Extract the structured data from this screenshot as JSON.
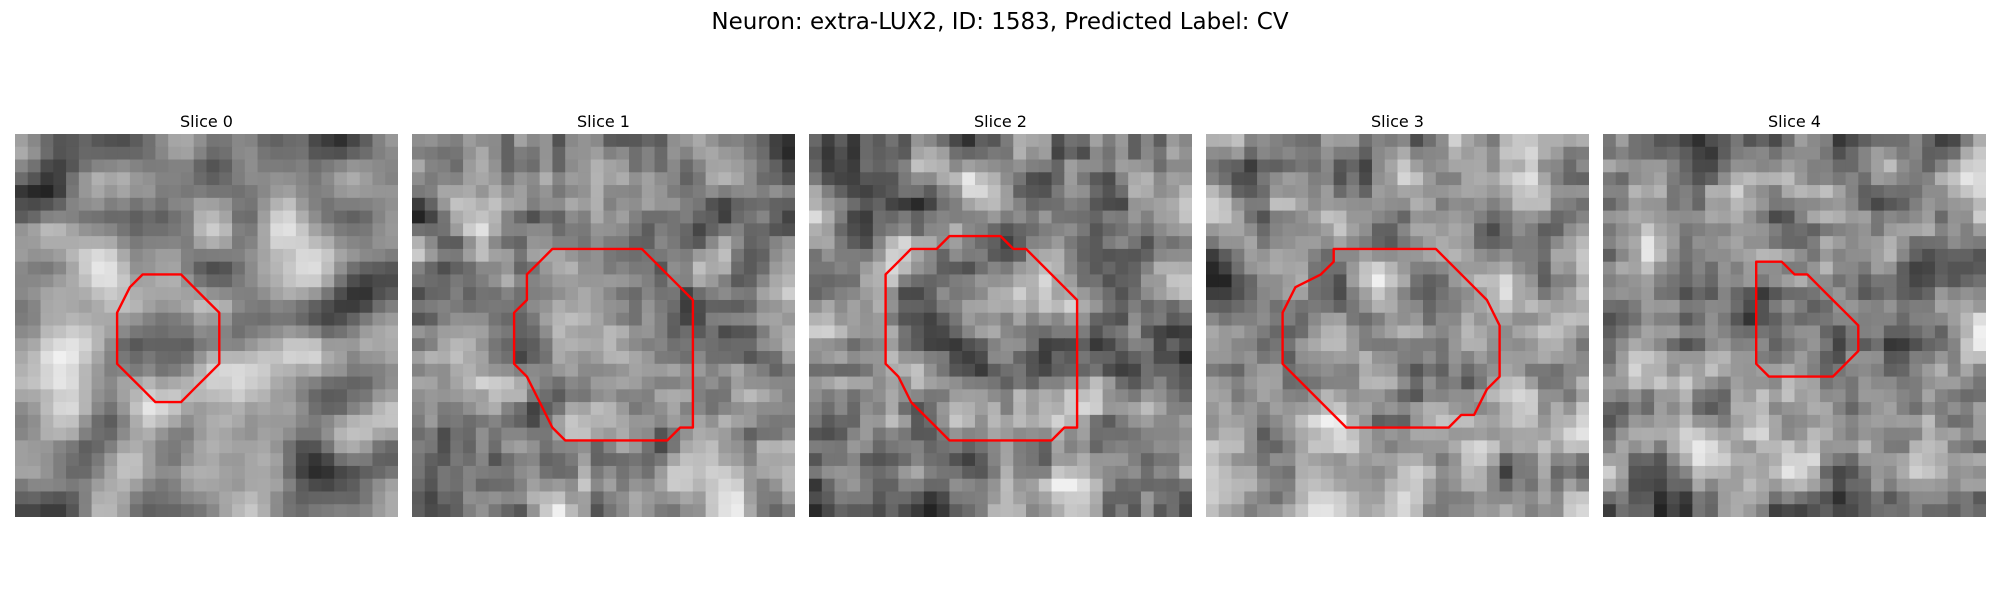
{
  "figure": {
    "title": "Neuron: extra-LUX2, ID: 1583, Predicted Label: CV"
  },
  "slices": [
    {
      "label": "Slice 0",
      "seed": 11,
      "blur": 2,
      "contour": [
        [
          12,
          11
        ],
        [
          13,
          11
        ],
        [
          14,
          12
        ],
        [
          15,
          13
        ],
        [
          16,
          14
        ],
        [
          16,
          18
        ],
        [
          15,
          19
        ],
        [
          14,
          20
        ],
        [
          13,
          21
        ],
        [
          11,
          21
        ],
        [
          10,
          20
        ],
        [
          9,
          19
        ],
        [
          8,
          18
        ],
        [
          8,
          14
        ],
        [
          9,
          12
        ],
        [
          10,
          11
        ]
      ]
    },
    {
      "label": "Slice 1",
      "seed": 23,
      "blur": 1,
      "contour": [
        [
          11,
          9
        ],
        [
          18,
          9
        ],
        [
          21,
          12
        ],
        [
          22,
          13
        ],
        [
          22,
          23
        ],
        [
          21,
          23
        ],
        [
          20,
          24
        ],
        [
          19,
          24
        ],
        [
          19,
          24
        ],
        [
          12,
          24
        ],
        [
          11,
          23
        ],
        [
          11,
          23
        ],
        [
          10,
          21
        ],
        [
          9,
          19
        ],
        [
          8,
          18
        ],
        [
          8,
          14
        ],
        [
          9,
          13
        ],
        [
          9,
          11
        ],
        [
          10,
          10
        ]
      ]
    },
    {
      "label": "Slice 2",
      "seed": 37,
      "blur": 1,
      "contour": [
        [
          11,
          8
        ],
        [
          13,
          8
        ],
        [
          15,
          8
        ],
        [
          16,
          9
        ],
        [
          17,
          9
        ],
        [
          20,
          12
        ],
        [
          21,
          13
        ],
        [
          21,
          23
        ],
        [
          20,
          23
        ],
        [
          19,
          24
        ],
        [
          18,
          24
        ],
        [
          17,
          24
        ],
        [
          11,
          24
        ],
        [
          10,
          23
        ],
        [
          8,
          21
        ],
        [
          7,
          19
        ],
        [
          6,
          18
        ],
        [
          6,
          11
        ],
        [
          7,
          10
        ],
        [
          8,
          9
        ],
        [
          10,
          9
        ]
      ]
    },
    {
      "label": "Slice 3",
      "seed": 51,
      "blur": 1,
      "contour": [
        [
          10,
          9
        ],
        [
          18,
          9
        ],
        [
          21,
          12
        ],
        [
          22,
          13
        ],
        [
          23,
          15
        ],
        [
          23,
          19
        ],
        [
          22,
          20
        ],
        [
          21,
          22
        ],
        [
          20,
          22
        ],
        [
          19,
          23
        ],
        [
          18,
          23
        ],
        [
          11,
          23
        ],
        [
          9,
          21
        ],
        [
          7,
          19
        ],
        [
          6,
          18
        ],
        [
          6,
          14
        ],
        [
          7,
          12
        ],
        [
          9,
          11
        ],
        [
          10,
          10
        ]
      ]
    },
    {
      "label": "Slice 4",
      "seed": 67,
      "blur": 1,
      "contour": [
        [
          12,
          10
        ],
        [
          14,
          10
        ],
        [
          15,
          11
        ],
        [
          16,
          11
        ],
        [
          17,
          12
        ],
        [
          18,
          13
        ],
        [
          19,
          14
        ],
        [
          20,
          15
        ],
        [
          20,
          17
        ],
        [
          19,
          18
        ],
        [
          18,
          19
        ],
        [
          13,
          19
        ],
        [
          12,
          18
        ],
        [
          12,
          17
        ],
        [
          12,
          14
        ],
        [
          12,
          13
        ],
        [
          12,
          11
        ]
      ]
    }
  ],
  "style": {
    "contour_color": "#ff0000"
  }
}
